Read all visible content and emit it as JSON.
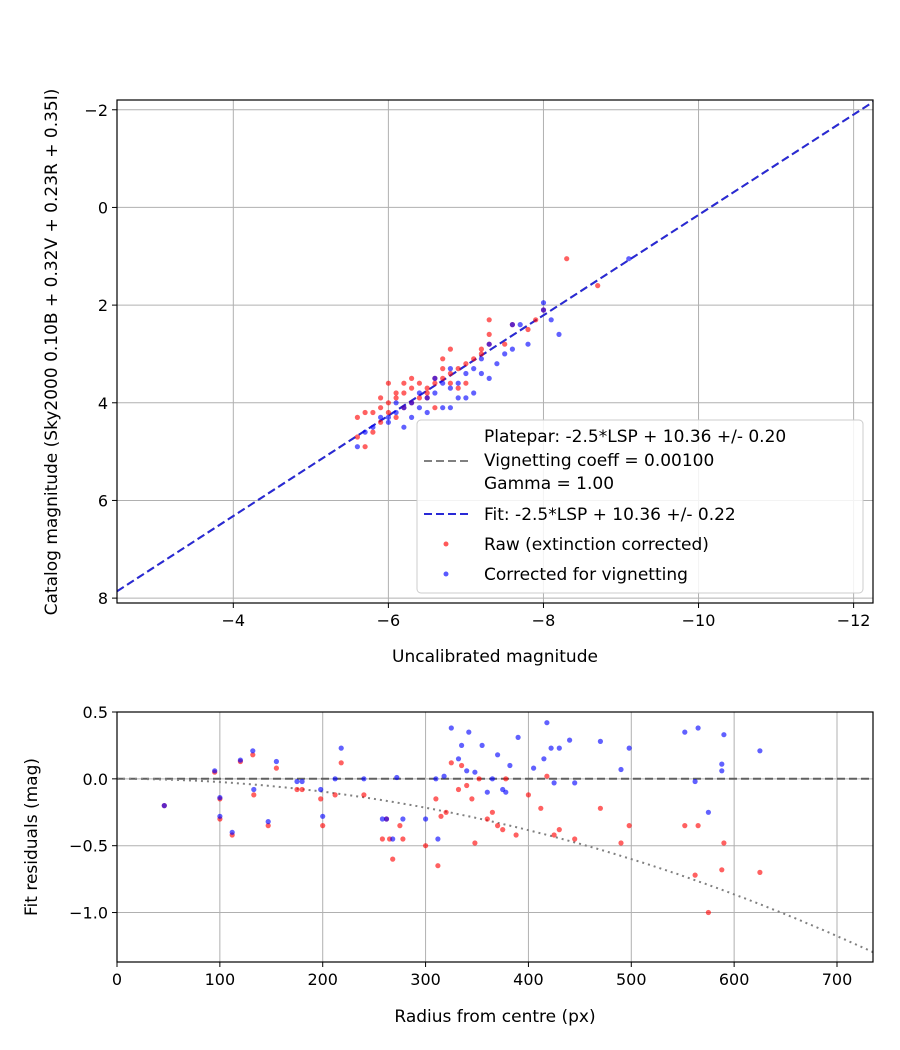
{
  "chart_data": [
    {
      "type": "scatter",
      "xlabel": "Uncalibrated magnitude",
      "ylabel": "Catalog magnitude (Sky2000 0.10B + 0.32V + 0.23R + 0.35I)",
      "xlim": [
        -2.5,
        -12.25
      ],
      "ylim": [
        8.1,
        -2.2
      ],
      "x_inverted": true,
      "y_inverted": true,
      "xticks": [
        -4,
        -6,
        -8,
        -10,
        -12
      ],
      "xtick_labels": [
        "−4",
        "−6",
        "−8",
        "−10",
        "−12"
      ],
      "yticks": [
        -2,
        0,
        2,
        4,
        6,
        8
      ],
      "ytick_labels": [
        "−2",
        "0",
        "2",
        "4",
        "6",
        "8"
      ],
      "grid": true,
      "legend_position": "bottom-right",
      "legend": [
        {
          "label": "Platepar: -2.5*LSP + 10.36 +/- 0.20"
        },
        {
          "label": "Vignetting coeff = 0.00100"
        },
        {
          "label": "Gamma = 1.00"
        },
        {
          "label": "Fit: -2.5*LSP + 10.36 +/- 0.22"
        },
        {
          "label": "Raw (extinction corrected)"
        },
        {
          "label": "Corrected for vignetting"
        }
      ],
      "lines": [
        {
          "name": "Platepar",
          "style": "dashed",
          "color": "#808080",
          "x": [
            -2.5,
            -12.25
          ],
          "y": [
            7.86,
            -2.16
          ]
        },
        {
          "name": "Fit",
          "style": "dashed",
          "color": "#2929d6",
          "x": [
            -2.5,
            -12.25
          ],
          "y": [
            7.86,
            -2.16
          ]
        }
      ],
      "series": [
        {
          "name": "Raw (extinction corrected)",
          "color": "#ff0000",
          "points": [
            [
              -8.3,
              1.05
            ],
            [
              -8.7,
              1.6
            ],
            [
              -7.3,
              2.3
            ],
            [
              -7.3,
              2.6
            ],
            [
              -7.3,
              2.8
            ],
            [
              -7.8,
              2.5
            ],
            [
              -7.9,
              2.3
            ],
            [
              -8.0,
              2.1
            ],
            [
              -7.6,
              2.4
            ],
            [
              -7.5,
              2.8
            ],
            [
              -7.2,
              3.0
            ],
            [
              -7.1,
              3.1
            ],
            [
              -7.0,
              3.2
            ],
            [
              -6.9,
              3.3
            ],
            [
              -6.8,
              3.4
            ],
            [
              -6.7,
              3.3
            ],
            [
              -6.8,
              2.9
            ],
            [
              -6.7,
              3.5
            ],
            [
              -6.6,
              3.6
            ],
            [
              -6.5,
              3.7
            ],
            [
              -6.4,
              3.6
            ],
            [
              -6.3,
              3.7
            ],
            [
              -6.2,
              3.8
            ],
            [
              -6.1,
              3.9
            ],
            [
              -6.0,
              4.0
            ],
            [
              -5.9,
              4.1
            ],
            [
              -5.8,
              4.2
            ],
            [
              -5.7,
              4.2
            ],
            [
              -5.6,
              4.3
            ],
            [
              -5.6,
              4.7
            ],
            [
              -5.7,
              4.9
            ],
            [
              -5.8,
              4.6
            ],
            [
              -5.9,
              4.4
            ],
            [
              -6.0,
              3.6
            ],
            [
              -6.1,
              3.8
            ],
            [
              -6.2,
              4.1
            ],
            [
              -6.3,
              4.0
            ],
            [
              -6.4,
              3.9
            ],
            [
              -6.5,
              3.8
            ],
            [
              -6.6,
              3.5
            ],
            [
              -6.7,
              3.1
            ],
            [
              -6.9,
              3.7
            ],
            [
              -7.0,
              3.6
            ],
            [
              -6.3,
              3.5
            ],
            [
              -6.5,
              3.9
            ],
            [
              -6.6,
              4.1
            ],
            [
              -6.2,
              3.6
            ],
            [
              -6.0,
              4.2
            ],
            [
              -5.9,
              3.9
            ],
            [
              -6.1,
              4.3
            ],
            [
              -6.8,
              3.6
            ],
            [
              -7.2,
              2.9
            ]
          ]
        },
        {
          "name": "Corrected for vignetting",
          "color": "#0000ff",
          "points": [
            [
              -9.1,
              1.05
            ],
            [
              -8.0,
              1.95
            ],
            [
              -8.0,
              2.1
            ],
            [
              -8.1,
              2.3
            ],
            [
              -8.2,
              2.6
            ],
            [
              -7.6,
              2.4
            ],
            [
              -7.7,
              2.4
            ],
            [
              -7.8,
              2.8
            ],
            [
              -7.5,
              3.0
            ],
            [
              -7.4,
              3.2
            ],
            [
              -7.3,
              2.8
            ],
            [
              -7.2,
              3.1
            ],
            [
              -7.1,
              3.3
            ],
            [
              -7.0,
              3.4
            ],
            [
              -6.9,
              3.6
            ],
            [
              -6.8,
              3.7
            ],
            [
              -6.8,
              3.3
            ],
            [
              -6.7,
              3.6
            ],
            [
              -6.6,
              3.8
            ],
            [
              -6.5,
              3.9
            ],
            [
              -6.4,
              4.1
            ],
            [
              -6.3,
              4.0
            ],
            [
              -6.2,
              4.1
            ],
            [
              -6.1,
              4.2
            ],
            [
              -6.0,
              4.3
            ],
            [
              -5.9,
              4.3
            ],
            [
              -5.8,
              4.5
            ],
            [
              -5.7,
              4.6
            ],
            [
              -5.6,
              4.9
            ],
            [
              -6.2,
              4.5
            ],
            [
              -6.5,
              4.2
            ],
            [
              -6.7,
              4.1
            ],
            [
              -6.9,
              3.9
            ],
            [
              -7.1,
              3.8
            ],
            [
              -7.2,
              3.4
            ],
            [
              -6.4,
              3.8
            ],
            [
              -6.3,
              4.3
            ],
            [
              -6.6,
              3.5
            ],
            [
              -7.0,
              3.9
            ],
            [
              -6.1,
              4.0
            ],
            [
              -6.8,
              4.1
            ],
            [
              -7.3,
              3.5
            ],
            [
              -6.0,
              4.4
            ],
            [
              -7.6,
              2.9
            ]
          ]
        }
      ]
    },
    {
      "type": "scatter",
      "xlabel": "Radius from centre (px)",
      "ylabel": "Fit residuals (mag)",
      "xlim": [
        0,
        735
      ],
      "ylim": [
        -1.37,
        0.5
      ],
      "xticks": [
        0,
        100,
        200,
        300,
        400,
        500,
        600,
        700
      ],
      "xtick_labels": [
        "0",
        "100",
        "200",
        "300",
        "400",
        "500",
        "600",
        "700"
      ],
      "yticks": [
        0.5,
        0.0,
        -0.5,
        -1.0
      ],
      "ytick_labels": [
        "0.5",
        "0.0",
        "−0.5",
        "−1.0"
      ],
      "grid": true,
      "lines": [
        {
          "name": "zero",
          "style": "dashed",
          "color": "#606060",
          "x": [
            0,
            735
          ],
          "y": [
            0,
            0
          ]
        },
        {
          "name": "vignetting model",
          "style": "dotted",
          "color": "#808080",
          "model": "quadratic",
          "coefficient": -2.4e-06,
          "x": [
            0,
            735
          ]
        }
      ],
      "series": [
        {
          "name": "Raw (extinction corrected)",
          "color": "#ff0000",
          "points": [
            [
              46,
              -0.2
            ],
            [
              95,
              0.05
            ],
            [
              100,
              -0.15
            ],
            [
              100,
              -0.3
            ],
            [
              112,
              -0.42
            ],
            [
              120,
              0.13
            ],
            [
              132,
              0.18
            ],
            [
              133,
              -0.12
            ],
            [
              147,
              -0.35
            ],
            [
              155,
              0.08
            ],
            [
              175,
              -0.08
            ],
            [
              180,
              -0.08
            ],
            [
              198,
              -0.15
            ],
            [
              200,
              -0.35
            ],
            [
              212,
              -0.12
            ],
            [
              218,
              0.12
            ],
            [
              240,
              -0.12
            ],
            [
              258,
              -0.45
            ],
            [
              262,
              -0.3
            ],
            [
              265,
              -0.45
            ],
            [
              268,
              -0.6
            ],
            [
              275,
              -0.35
            ],
            [
              278,
              -0.45
            ],
            [
              300,
              -0.5
            ],
            [
              310,
              -0.15
            ],
            [
              312,
              -0.65
            ],
            [
              315,
              -0.28
            ],
            [
              320,
              -0.25
            ],
            [
              325,
              0.12
            ],
            [
              332,
              -0.08
            ],
            [
              335,
              0.1
            ],
            [
              340,
              -0.05
            ],
            [
              345,
              -0.15
            ],
            [
              348,
              -0.48
            ],
            [
              352,
              0.0
            ],
            [
              360,
              -0.3
            ],
            [
              365,
              -0.25
            ],
            [
              370,
              -0.35
            ],
            [
              375,
              -0.38
            ],
            [
              378,
              0.0
            ],
            [
              388,
              -0.42
            ],
            [
              400,
              -0.12
            ],
            [
              412,
              -0.22
            ],
            [
              418,
              0.02
            ],
            [
              425,
              -0.42
            ],
            [
              430,
              -0.38
            ],
            [
              445,
              -0.45
            ],
            [
              470,
              -0.22
            ],
            [
              490,
              -0.48
            ],
            [
              498,
              -0.35
            ],
            [
              552,
              -0.35
            ],
            [
              562,
              -0.72
            ],
            [
              565,
              -0.35
            ],
            [
              575,
              -1.0
            ],
            [
              588,
              -0.68
            ],
            [
              590,
              -0.48
            ],
            [
              625,
              -0.7
            ]
          ]
        },
        {
          "name": "Corrected for vignetting",
          "color": "#0000ff",
          "points": [
            [
              46,
              -0.2
            ],
            [
              95,
              0.06
            ],
            [
              100,
              -0.14
            ],
            [
              100,
              -0.28
            ],
            [
              112,
              -0.4
            ],
            [
              120,
              0.14
            ],
            [
              132,
              0.21
            ],
            [
              133,
              -0.08
            ],
            [
              147,
              -0.32
            ],
            [
              155,
              0.13
            ],
            [
              175,
              -0.02
            ],
            [
              180,
              -0.02
            ],
            [
              198,
              -0.08
            ],
            [
              200,
              -0.28
            ],
            [
              212,
              0.0
            ],
            [
              218,
              0.23
            ],
            [
              240,
              0.0
            ],
            [
              258,
              -0.3
            ],
            [
              262,
              -0.3
            ],
            [
              268,
              -0.45
            ],
            [
              272,
              0.01
            ],
            [
              278,
              -0.3
            ],
            [
              300,
              -0.3
            ],
            [
              310,
              0.0
            ],
            [
              312,
              -0.45
            ],
            [
              318,
              0.02
            ],
            [
              325,
              0.38
            ],
            [
              332,
              0.15
            ],
            [
              335,
              0.25
            ],
            [
              340,
              0.06
            ],
            [
              342,
              0.35
            ],
            [
              348,
              0.05
            ],
            [
              355,
              0.25
            ],
            [
              360,
              -0.1
            ],
            [
              365,
              0.0
            ],
            [
              370,
              0.18
            ],
            [
              375,
              -0.08
            ],
            [
              378,
              -0.1
            ],
            [
              382,
              0.1
            ],
            [
              390,
              0.31
            ],
            [
              405,
              0.08
            ],
            [
              415,
              0.15
            ],
            [
              418,
              0.42
            ],
            [
              422,
              0.23
            ],
            [
              425,
              -0.03
            ],
            [
              430,
              0.23
            ],
            [
              440,
              0.29
            ],
            [
              445,
              -0.03
            ],
            [
              470,
              0.28
            ],
            [
              490,
              0.07
            ],
            [
              498,
              0.23
            ],
            [
              552,
              0.35
            ],
            [
              562,
              -0.02
            ],
            [
              565,
              0.38
            ],
            [
              575,
              -0.25
            ],
            [
              588,
              0.11
            ],
            [
              588,
              0.06
            ],
            [
              590,
              0.33
            ],
            [
              625,
              0.21
            ]
          ]
        }
      ]
    }
  ]
}
